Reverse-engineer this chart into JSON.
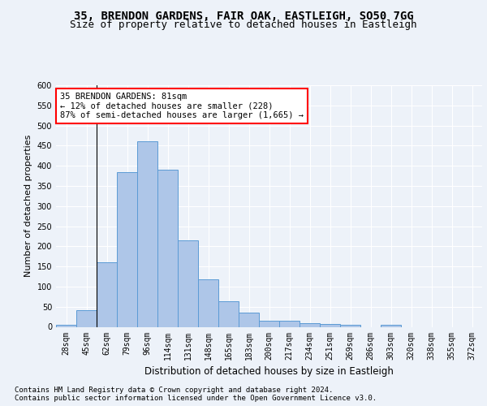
{
  "title1": "35, BRENDON GARDENS, FAIR OAK, EASTLEIGH, SO50 7GG",
  "title2": "Size of property relative to detached houses in Eastleigh",
  "xlabel": "Distribution of detached houses by size in Eastleigh",
  "ylabel": "Number of detached properties",
  "categories": [
    "28sqm",
    "45sqm",
    "62sqm",
    "79sqm",
    "96sqm",
    "114sqm",
    "131sqm",
    "148sqm",
    "165sqm",
    "183sqm",
    "200sqm",
    "217sqm",
    "234sqm",
    "251sqm",
    "269sqm",
    "286sqm",
    "303sqm",
    "320sqm",
    "338sqm",
    "355sqm",
    "372sqm"
  ],
  "values": [
    5,
    42,
    160,
    385,
    460,
    390,
    215,
    118,
    63,
    35,
    15,
    15,
    10,
    7,
    5,
    0,
    5,
    0,
    0,
    0,
    0
  ],
  "bar_color": "#aec6e8",
  "bar_edge_color": "#5b9bd5",
  "annotation_text": "35 BRENDON GARDENS: 81sqm\n← 12% of detached houses are smaller (228)\n87% of semi-detached houses are larger (1,665) →",
  "vline_x": 1.5,
  "ylim": [
    0,
    600
  ],
  "yticks": [
    0,
    50,
    100,
    150,
    200,
    250,
    300,
    350,
    400,
    450,
    500,
    550,
    600
  ],
  "bg_color": "#edf2f9",
  "plot_bg_color": "#edf2f9",
  "footnote": "Contains HM Land Registry data © Crown copyright and database right 2024.\nContains public sector information licensed under the Open Government Licence v3.0.",
  "title1_fontsize": 10,
  "title2_fontsize": 9,
  "xlabel_fontsize": 8.5,
  "ylabel_fontsize": 8,
  "tick_fontsize": 7,
  "annotation_fontsize": 7.5,
  "footnote_fontsize": 6.5
}
